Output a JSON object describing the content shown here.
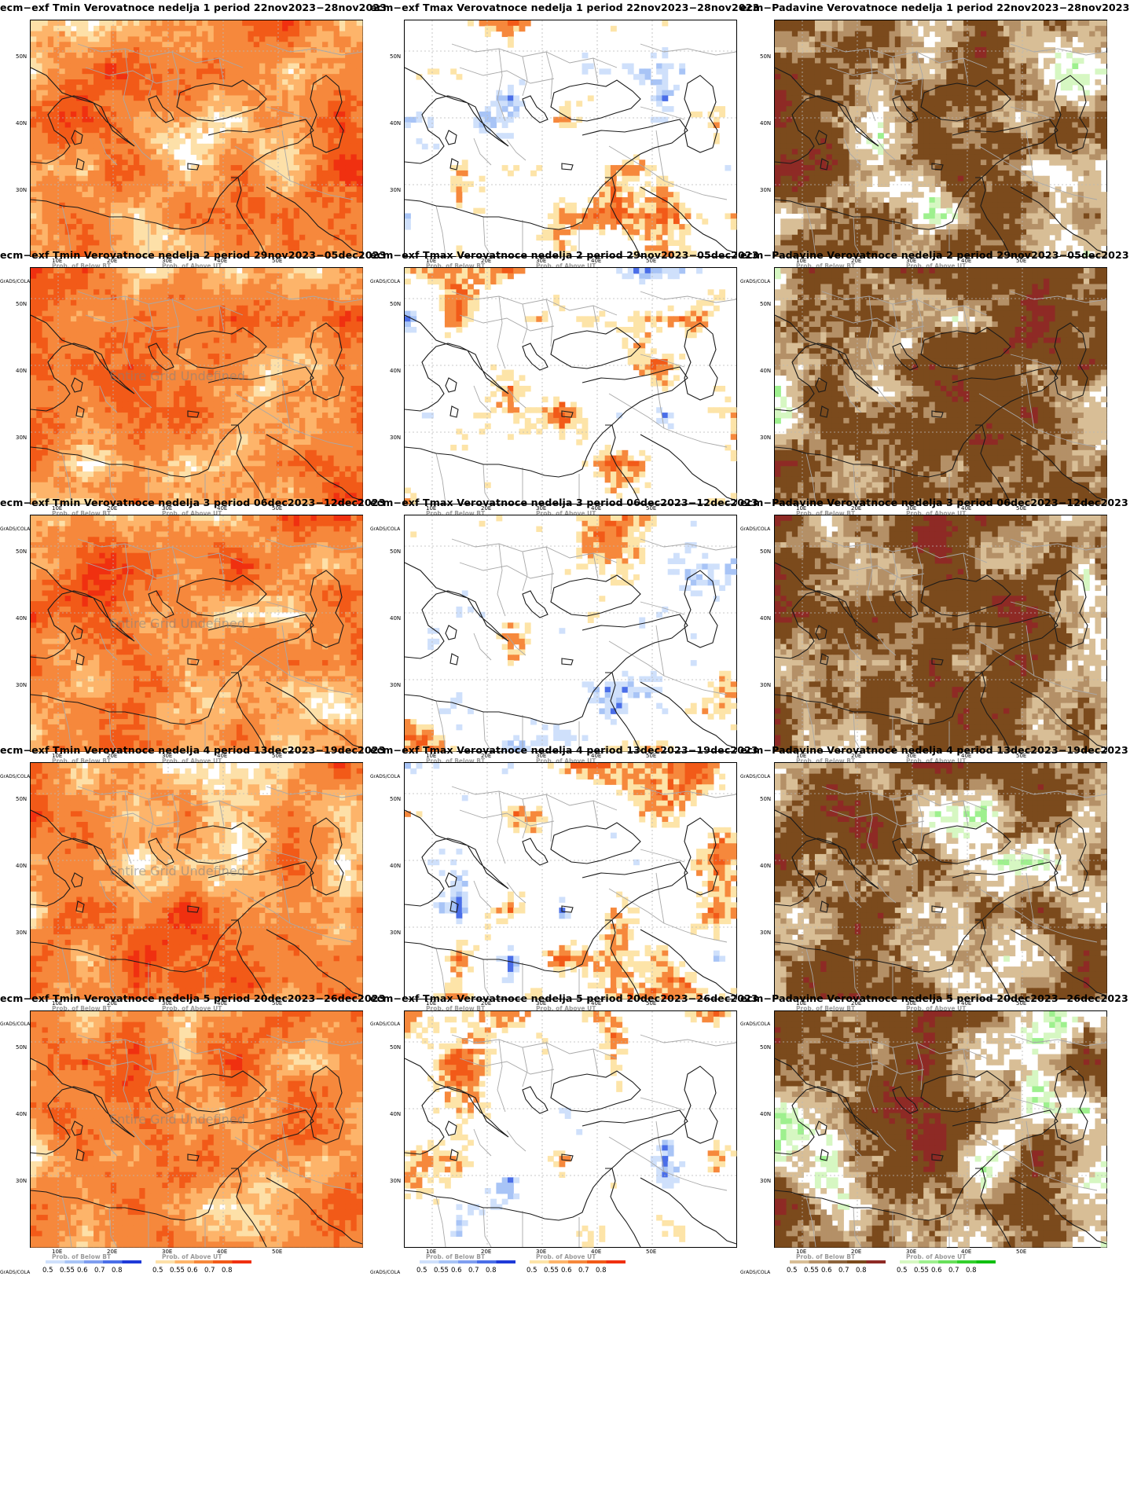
{
  "panels": [
    {
      "title": "ecm−exf Tmin Verovatnoce nedelja 1 period 22nov2023−28nov2023",
      "kind": "tmin",
      "undef": ""
    },
    {
      "title": "ecm−exf Tmax Verovatnoce nedelja 1 period 22nov2023−28nov2023",
      "kind": "tmax",
      "undef": ""
    },
    {
      "title": "ecm−Padavine Verovatnoce nedelja 1 period 22nov2023−28nov2023",
      "kind": "prec",
      "undef": ""
    },
    {
      "title": "ecm−exf Tmin Verovatnoce nedelja 2 period 29nov2023−05dec2023",
      "kind": "tmin",
      "undef": "Entire Grid Undefined"
    },
    {
      "title": "ecm−exf Tmax Verovatnoce nedelja 2 period 29nov2023−05dec2023",
      "kind": "tmax",
      "undef": ""
    },
    {
      "title": "ecm−Padavine Verovatnoce nedelja 2 period 29nov2023−05dec2023",
      "kind": "prec",
      "undef": ""
    },
    {
      "title": "ecm−exf Tmin Verovatnoce nedelja 3 period 06dec2023−12dec2023",
      "kind": "tmin",
      "undef": "Entire Grid Undefined"
    },
    {
      "title": "ecm−exf Tmax Verovatnoce nedelja 3 period 06dec2023−12dec2023",
      "kind": "tmax",
      "undef": ""
    },
    {
      "title": "ecm−Padavine Verovatnoce nedelja 3 period 06dec2023−12dec2023",
      "kind": "prec",
      "undef": ""
    },
    {
      "title": "ecm−exf Tmin Verovatnoce nedelja 4 period 13dec2023−19dec2023",
      "kind": "tmin",
      "undef": "Entire Grid Undefined"
    },
    {
      "title": "ecm−exf Tmax Verovatnoce nedelja 4 period 13dec2023−19dec2023",
      "kind": "tmax",
      "undef": ""
    },
    {
      "title": "ecm−Padavine Verovatnoce nedelja 4 period 13dec2023−19dec2023",
      "kind": "prec",
      "undef": ""
    },
    {
      "title": "ecm−exf Tmin Verovatnoce nedelja 5 period 20dec2023−26dec2023",
      "kind": "tmin",
      "undef": "Entire Grid Undefined"
    },
    {
      "title": "ecm−exf Tmax Verovatnoce nedelja 5 period 20dec2023−26dec2023",
      "kind": "tmax",
      "undef": ""
    },
    {
      "title": "ecm−Padavine Verovatnoce nedelja 5 period 20dec2023−26dec2023",
      "kind": "prec",
      "undef": ""
    }
  ],
  "axes": {
    "lat_labels": [
      "50N",
      "40N",
      "30N"
    ],
    "lon_labels": [
      "10E",
      "20E",
      "30E",
      "40E",
      "50E"
    ]
  },
  "legend": {
    "below_title": "Prob. of Below BT",
    "above_title": "Prob. of Above UT",
    "ticks": [
      "0.5",
      "0.55",
      "0.6",
      "0.7",
      "0.8"
    ],
    "credit": "GrADS/COLA"
  },
  "colors": {
    "tmin_palette": [
      "#fde0a8",
      "#fdb46a",
      "#f6883c",
      "#f25a18",
      "#f03010"
    ],
    "tmax_above": [
      "#fde4a8",
      "#fdb46a",
      "#f6883c",
      "#f25a18",
      "#f03010"
    ],
    "tmax_below": [
      "#cfe0fb",
      "#a8c4f6",
      "#7f9ef0",
      "#4a6ee8",
      "#1e3ad8"
    ],
    "prec_below": [
      "#d8be96",
      "#b49067",
      "#8d643c",
      "#7b4a1c",
      "#8e2a25"
    ],
    "prec_above": [
      "#d6f7c2",
      "#9ef08e",
      "#68e05a",
      "#32d02c",
      "#10c010"
    ]
  }
}
